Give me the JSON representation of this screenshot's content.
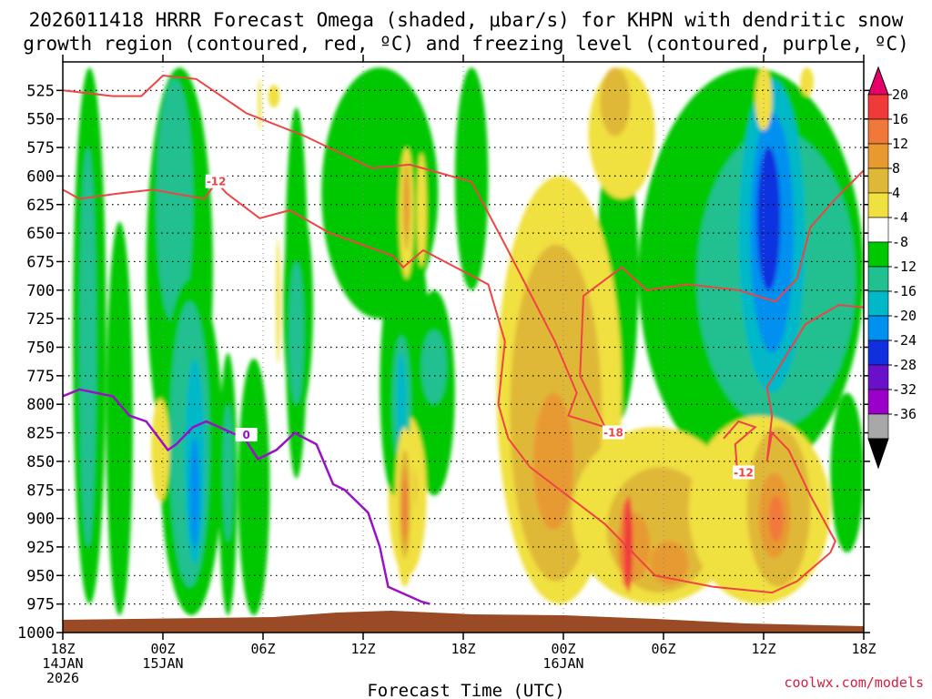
{
  "chart_data": {
    "type": "heatmap",
    "title_line1": "2026011418 HRRR Forecast Omega (shaded, μbar/s) for KHPN with dendritic snow",
    "title_line2": "growth region (contoured, red, ºC) and freezing level (contoured, purple, ºC)",
    "xlabel": "Forecast Time (UTC)",
    "credit": "coolwx.com/models",
    "x_ticks": [
      {
        "hour": 0,
        "lines": [
          "18Z",
          "14JAN",
          "2026"
        ]
      },
      {
        "hour": 6,
        "lines": [
          "00Z",
          "15JAN"
        ]
      },
      {
        "hour": 12,
        "lines": [
          "06Z"
        ]
      },
      {
        "hour": 18,
        "lines": [
          "12Z"
        ]
      },
      {
        "hour": 24,
        "lines": [
          "18Z"
        ]
      },
      {
        "hour": 30,
        "lines": [
          "00Z",
          "16JAN"
        ]
      },
      {
        "hour": 36,
        "lines": [
          "06Z"
        ]
      },
      {
        "hour": 42,
        "lines": [
          "12Z"
        ]
      },
      {
        "hour": 48,
        "lines": [
          "18Z"
        ]
      }
    ],
    "x_range_hours": [
      0,
      48
    ],
    "y_levels_hPa": [
      525,
      550,
      575,
      600,
      625,
      650,
      675,
      700,
      725,
      750,
      775,
      800,
      825,
      850,
      875,
      900,
      925,
      950,
      975,
      1000
    ],
    "y_range_hPa": [
      500,
      1000
    ],
    "colorbar_labels": [
      "20",
      "16",
      "12",
      "8",
      "4",
      "-4",
      "-8",
      "-12",
      "-16",
      "-20",
      "-24",
      "-28",
      "-32",
      "-36"
    ],
    "colorbar_colors": [
      "#e8006a",
      "#f03a3a",
      "#f0793a",
      "#e89a30",
      "#e0b838",
      "#f0e040",
      "#ffffff",
      "#00c800",
      "#20c090",
      "#00b8c8",
      "#0090f0",
      "#1030e0",
      "#6a10c8",
      "#9a00c8",
      "#a8a8a8",
      "#000000"
    ],
    "omega_regions": [
      {
        "h0": 0.6,
        "h1": 2.6,
        "p0": 505,
        "p1": 975,
        "value": -8
      },
      {
        "h0": 1.0,
        "h1": 2.0,
        "p0": 575,
        "p1": 925,
        "value": -12
      },
      {
        "h0": 2.6,
        "h1": 4.2,
        "p0": 640,
        "p1": 985,
        "value": -8
      },
      {
        "h0": 5.0,
        "h1": 9.0,
        "p0": 505,
        "p1": 860,
        "value": -8
      },
      {
        "h0": 5.6,
        "h1": 7.8,
        "p0": 515,
        "p1": 730,
        "value": -12
      },
      {
        "h0": 5.8,
        "h1": 9.6,
        "p0": 690,
        "p1": 985,
        "value": -8
      },
      {
        "h0": 6.4,
        "h1": 8.8,
        "p0": 710,
        "p1": 960,
        "value": -12
      },
      {
        "h0": 7.3,
        "h1": 8.5,
        "p0": 760,
        "p1": 940,
        "value": -16
      },
      {
        "h0": 7.6,
        "h1": 8.2,
        "p0": 830,
        "p1": 925,
        "value": -20
      },
      {
        "h0": 10.5,
        "h1": 12.4,
        "p0": 760,
        "p1": 985,
        "value": -8
      },
      {
        "h0": 13.2,
        "h1": 15.0,
        "p0": 620,
        "p1": 810,
        "value": -8
      },
      {
        "h0": 15.5,
        "h1": 22.5,
        "p0": 505,
        "p1": 725,
        "value": -8
      },
      {
        "h0": 20.2,
        "h1": 22.0,
        "p0": 660,
        "p1": 860,
        "value": -8
      },
      {
        "h0": 21.0,
        "h1": 23.5,
        "p0": 700,
        "p1": 880,
        "value": -8
      },
      {
        "h0": 21.5,
        "h1": 23.0,
        "p0": 735,
        "p1": 800,
        "value": -12
      },
      {
        "h0": 23.5,
        "h1": 25.5,
        "p0": 505,
        "p1": 700,
        "value": -8
      },
      {
        "h0": 32.0,
        "h1": 34.5,
        "p0": 560,
        "p1": 815,
        "value": -8
      },
      {
        "h0": 34.5,
        "h1": 48.0,
        "p0": 505,
        "p1": 865,
        "value": -8
      },
      {
        "h0": 38.0,
        "h1": 47.5,
        "p0": 560,
        "p1": 820,
        "value": -12
      },
      {
        "h0": 40.5,
        "h1": 44.5,
        "p0": 515,
        "p1": 790,
        "value": -16
      },
      {
        "h0": 41.2,
        "h1": 43.8,
        "p0": 545,
        "p1": 755,
        "value": -20
      },
      {
        "h0": 41.6,
        "h1": 43.0,
        "p0": 575,
        "p1": 700,
        "value": -24
      },
      {
        "h0": 46.0,
        "h1": 48.0,
        "p0": 790,
        "p1": 930,
        "value": -8
      },
      {
        "h0": 12.3,
        "h1": 13.0,
        "p0": 520,
        "p1": 540,
        "value": 4
      },
      {
        "h0": 13.6,
        "h1": 14.0,
        "p0": 660,
        "p1": 705,
        "value": 4
      },
      {
        "h0": 5.3,
        "h1": 6.4,
        "p0": 795,
        "p1": 885,
        "value": 4
      },
      {
        "h0": 19.5,
        "h1": 21.8,
        "p0": 810,
        "p1": 950,
        "value": 4
      },
      {
        "h0": 20.3,
        "h1": 21.2,
        "p0": 850,
        "p1": 900,
        "value": 8
      },
      {
        "h0": 20.6,
        "h1": 21.0,
        "p0": 865,
        "p1": 888,
        "value": 12
      },
      {
        "h0": 21.2,
        "h1": 21.8,
        "p0": 580,
        "p1": 680,
        "value": 4
      },
      {
        "h0": 26.0,
        "h1": 33.5,
        "p0": 600,
        "p1": 975,
        "value": 4
      },
      {
        "h0": 26.8,
        "h1": 32.3,
        "p0": 660,
        "p1": 955,
        "value": 8
      },
      {
        "h0": 28.2,
        "h1": 30.6,
        "p0": 790,
        "p1": 910,
        "value": 12
      },
      {
        "h0": 30.5,
        "h1": 40.5,
        "p0": 820,
        "p1": 975,
        "value": 4
      },
      {
        "h0": 32.6,
        "h1": 39.0,
        "p0": 855,
        "p1": 965,
        "value": 8
      },
      {
        "h0": 33.2,
        "h1": 35.2,
        "p0": 895,
        "p1": 955,
        "value": 12
      },
      {
        "h0": 35.2,
        "h1": 37.5,
        "p0": 920,
        "p1": 958,
        "value": 12
      },
      {
        "h0": 33.4,
        "h1": 34.0,
        "p0": 885,
        "p1": 960,
        "value": 16
      },
      {
        "h0": 37.5,
        "h1": 46.0,
        "p0": 810,
        "p1": 975,
        "value": 4
      },
      {
        "h0": 41.0,
        "h1": 44.8,
        "p0": 820,
        "p1": 960,
        "value": 8
      },
      {
        "h0": 41.7,
        "h1": 43.6,
        "p0": 860,
        "p1": 935,
        "value": 12
      },
      {
        "h0": 42.3,
        "h1": 43.2,
        "p0": 880,
        "p1": 920,
        "value": 16
      },
      {
        "h0": 31.5,
        "h1": 35.5,
        "p0": 505,
        "p1": 620,
        "value": 4
      },
      {
        "h0": 32.2,
        "h1": 34.0,
        "p0": 505,
        "p1": 565,
        "value": 8
      },
      {
        "h0": 41.5,
        "h1": 42.5,
        "p0": 505,
        "p1": 560,
        "value": 4
      },
      {
        "h0": 44.2,
        "h1": 45.0,
        "p0": 505,
        "p1": 530,
        "value": 4
      }
    ],
    "streaks": [
      {
        "h": 9.9,
        "half_width": 0.55,
        "p0": 755,
        "p1": 985,
        "value": -8
      },
      {
        "h": 9.9,
        "half_width": 0.3,
        "p0": 800,
        "p1": 920,
        "value": -12
      },
      {
        "h": 11.8,
        "half_width": 0.1,
        "p0": 515,
        "p1": 560,
        "value": 4
      },
      {
        "h": 12.9,
        "half_width": 0.12,
        "p0": 655,
        "p1": 765,
        "value": 4
      },
      {
        "h": 14.0,
        "half_width": 0.7,
        "p0": 540,
        "p1": 865,
        "value": -8
      },
      {
        "h": 14.0,
        "half_width": 0.45,
        "p0": 675,
        "p1": 800,
        "value": -12
      },
      {
        "h": 19.9,
        "half_width": 0.9,
        "p0": 685,
        "p1": 880,
        "value": -8
      },
      {
        "h": 20.3,
        "half_width": 0.55,
        "p0": 740,
        "p1": 855,
        "value": -12
      },
      {
        "h": 20.3,
        "half_width": 0.3,
        "p0": 755,
        "p1": 835,
        "value": -16
      },
      {
        "h": 20.5,
        "half_width": 0.6,
        "p0": 820,
        "p1": 960,
        "value": 4
      },
      {
        "h": 20.5,
        "half_width": 0.35,
        "p0": 840,
        "p1": 935,
        "value": 8
      },
      {
        "h": 20.5,
        "half_width": 0.22,
        "p0": 855,
        "p1": 925,
        "value": 12
      },
      {
        "h": 20.5,
        "half_width": 0.12,
        "p0": 865,
        "p1": 915,
        "value": 16
      },
      {
        "h": 20.6,
        "half_width": 0.45,
        "p0": 575,
        "p1": 690,
        "value": 4
      },
      {
        "h": 20.6,
        "half_width": 0.25,
        "p0": 585,
        "p1": 665,
        "value": 8
      },
      {
        "h": 20.6,
        "half_width": 0.12,
        "p0": 600,
        "p1": 650,
        "value": 12
      },
      {
        "h": 33.9,
        "half_width": 0.25,
        "p0": 880,
        "p1": 965,
        "value": 20
      }
    ],
    "dgz_contour_line1": [
      [
        0,
        525
      ],
      [
        3,
        530
      ],
      [
        4.7,
        530
      ],
      [
        6.0,
        512
      ],
      [
        8.0,
        515
      ],
      [
        11.0,
        545
      ],
      [
        14.5,
        565
      ],
      [
        18.5,
        593
      ],
      [
        20.8,
        590
      ],
      [
        24.5,
        605
      ],
      [
        26.5,
        660
      ],
      [
        29.5,
        745
      ],
      [
        30.8,
        790
      ],
      [
        30.3,
        810
      ],
      [
        32.5,
        820
      ],
      [
        31.0,
        775
      ],
      [
        31.2,
        705
      ],
      [
        33.5,
        680
      ],
      [
        35.0,
        700
      ],
      [
        37.5,
        695
      ],
      [
        40.5,
        700
      ],
      [
        42.7,
        710
      ],
      [
        44.0,
        690
      ],
      [
        44.8,
        645
      ],
      [
        46.3,
        620
      ],
      [
        48.0,
        595
      ]
    ],
    "dgz_contour_line2": [
      [
        0,
        612
      ],
      [
        1.0,
        620
      ],
      [
        3.5,
        615
      ],
      [
        5.4,
        612
      ],
      [
        8.5,
        620
      ],
      [
        9.2,
        605
      ],
      [
        9.8,
        615
      ],
      [
        11.8,
        637
      ],
      [
        13.6,
        630
      ],
      [
        16.0,
        650
      ],
      [
        19.8,
        670
      ],
      [
        20.4,
        680
      ],
      [
        21.6,
        665
      ],
      [
        22.5,
        672
      ],
      [
        25.5,
        695
      ],
      [
        26.5,
        745
      ],
      [
        26.1,
        800
      ],
      [
        26.7,
        830
      ],
      [
        28.0,
        855
      ],
      [
        32.5,
        905
      ],
      [
        35.5,
        950
      ],
      [
        39.0,
        960
      ],
      [
        42.5,
        965
      ],
      [
        44.0,
        955
      ],
      [
        46.0,
        930
      ],
      [
        46.3,
        920
      ],
      [
        44.8,
        880
      ],
      [
        43.5,
        840
      ],
      [
        42.5,
        825
      ],
      [
        42.2,
        850
      ],
      [
        42.5,
        810
      ],
      [
        42.2,
        785
      ],
      [
        44.5,
        730
      ],
      [
        46.5,
        713
      ],
      [
        48.0,
        715
      ]
    ],
    "dgz_contour_line3": [
      [
        39.6,
        830
      ],
      [
        40.5,
        815
      ],
      [
        41.5,
        820
      ],
      [
        40.3,
        835
      ],
      [
        40.4,
        855
      ],
      [
        41.2,
        862
      ]
    ],
    "freezing_level_line": [
      [
        0,
        793
      ],
      [
        1.0,
        787
      ],
      [
        3.0,
        793
      ],
      [
        4.0,
        810
      ],
      [
        5.0,
        815
      ],
      [
        6.3,
        840
      ],
      [
        6.8,
        835
      ],
      [
        7.8,
        820
      ],
      [
        8.6,
        815
      ],
      [
        10.9,
        830
      ],
      [
        11.7,
        848
      ],
      [
        12.8,
        840
      ],
      [
        13.9,
        825
      ],
      [
        15.2,
        835
      ],
      [
        16.2,
        870
      ],
      [
        16.9,
        875
      ],
      [
        18.3,
        895
      ],
      [
        19.0,
        925
      ],
      [
        19.5,
        960
      ],
      [
        21.5,
        973
      ],
      [
        22.0,
        975
      ]
    ],
    "contour_labels": [
      {
        "h": 9.2,
        "p": 605,
        "text": "-12",
        "color": "#ef4444"
      },
      {
        "h": 11.0,
        "p": 827,
        "text": "0",
        "color": "#9a10c8"
      },
      {
        "h": 33.0,
        "p": 825,
        "text": "-18",
        "color": "#ef4444"
      },
      {
        "h": 40.8,
        "p": 860,
        "text": "-12",
        "color": "#ef4444"
      }
    ]
  }
}
